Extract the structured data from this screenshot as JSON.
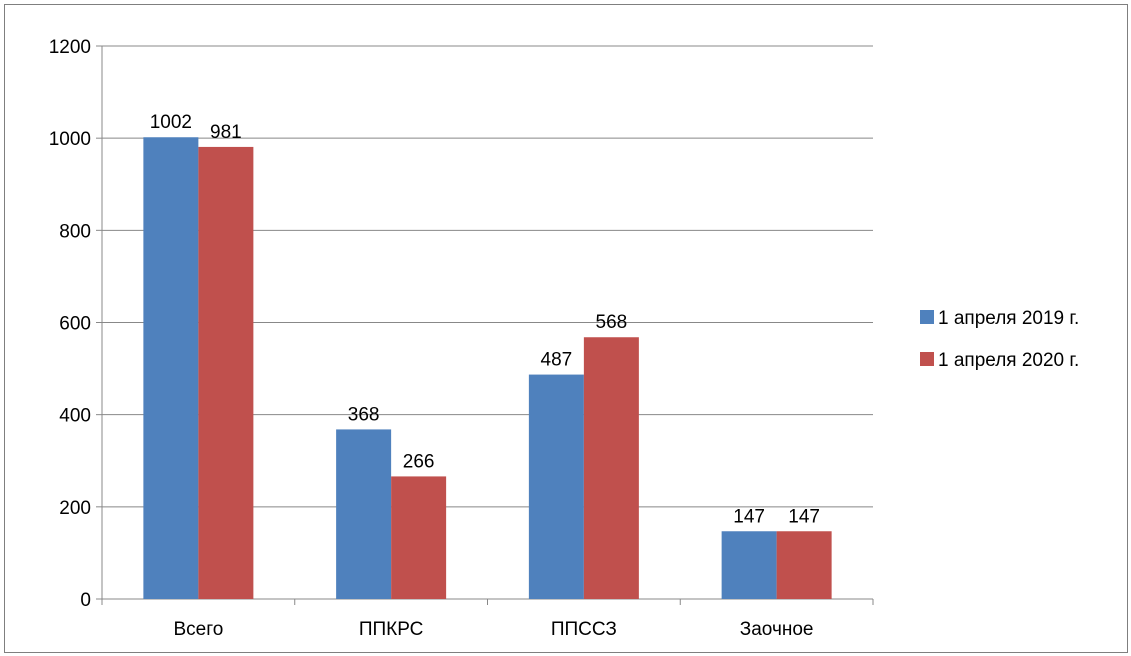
{
  "chart_data": {
    "type": "bar",
    "categories": [
      "Всего",
      "ППКРС",
      "ППССЗ",
      "Заочное"
    ],
    "series": [
      {
        "name": "1 апреля 2019 г.",
        "values": [
          1002,
          368,
          487,
          147
        ],
        "color": "#4f81bd"
      },
      {
        "name": "1 апреля 2020 г.",
        "values": [
          981,
          266,
          568,
          147
        ],
        "color": "#c0504d"
      }
    ],
    "yticks": [
      "0",
      "200",
      "400",
      "600",
      "800",
      "1000",
      "1200"
    ],
    "ylim": [
      0,
      1200
    ],
    "grid": true,
    "legend_position": "right"
  }
}
